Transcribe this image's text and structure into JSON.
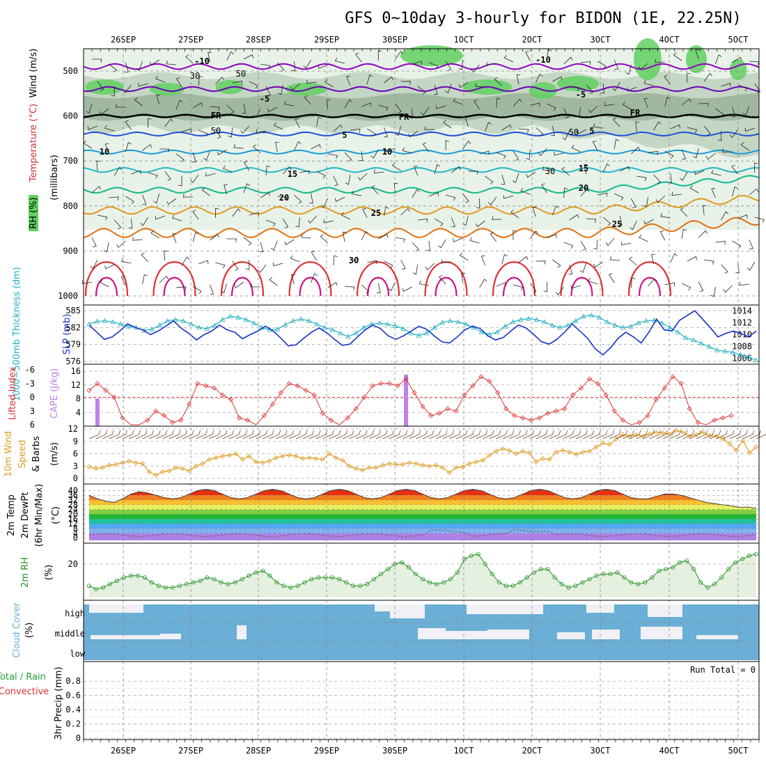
{
  "title": "GFS 0~10day 3-hourly for BIDON (1E, 22.25N)",
  "colors": {
    "temp10neg": "#9000c0",
    "temp5neg": "#7000b8",
    "fr": "#000000",
    "t5": "#1e4fd8",
    "t10": "#1a9ad8",
    "t15": "#20b8c8",
    "t20": "#10b890",
    "t25": "#e09a20",
    "t30": "#e07010",
    "t35": "#e03030",
    "t40": "#d0108a",
    "rh_light": "#e8f2e8",
    "rh_mid": "#c4d6c4",
    "rh_dark": "#a0b8a0",
    "rh_green": "#60d060",
    "thickness": "#20b0c0",
    "slp": "#1830c8",
    "lifted": "#e03030",
    "cape": "#c080e8",
    "wind": "#e09a20",
    "barb": "#604020",
    "rh2m": "#209020",
    "cloud": "#6baed6",
    "cloudfree": "#f0f0f6"
  },
  "date_labels": [
    "26SEP",
    "27SEP",
    "28SEP",
    "29SEP",
    "30SEP",
    "1OCT",
    "2OCT",
    "3OCT",
    "4OCT",
    "5OCT"
  ],
  "panels": {
    "upper": {
      "ylabel_wind": "Wind (m/s)",
      "ylabel_temp": "Temperature (°C)",
      "ylabel_rh": "RH (%)",
      "ylabel_mb": "(millibars)",
      "levels": [
        "500",
        "600",
        "700",
        "800",
        "900",
        "1000"
      ],
      "contour_labels": [
        "-10",
        "-5",
        "FR",
        "5",
        "10",
        "15",
        "20",
        "25",
        "30",
        "50",
        "30",
        "50"
      ]
    },
    "thickness": {
      "ylabel_left": "1000~500mb Thickness (dm)",
      "ylabel_right": "SLP (mb)",
      "left_ticks": [
        "585",
        "582",
        "579",
        "576"
      ],
      "right_ticks": [
        "1014",
        "1012",
        "1010",
        "1008",
        "1006"
      ]
    },
    "instability": {
      "ylabel_left": "Lifted Index",
      "ylabel_right": "CAPE (J/kg)",
      "left_ticks": [
        "-6",
        "-3",
        "0",
        "3",
        "6"
      ],
      "right_ticks": [
        "16",
        "12",
        "8",
        "4"
      ]
    },
    "wind10m": {
      "ylabel1": "10m Wind",
      "ylabel2": "Speed",
      "ylabel3": "& Barbs",
      "unit": "(m/s)",
      "ticks": [
        "12",
        "9",
        "6",
        "3",
        "0"
      ]
    },
    "temp2m": {
      "ylabel1": "2m Temp",
      "ylabel2": "2m DewPt",
      "ylabel3": "(6hr Min/Max)",
      "unit": "(°C)",
      "ticks": [
        "40",
        "32",
        "24",
        "16",
        "8",
        "0"
      ],
      "ticks_extra": [
        "36",
        "28",
        "20",
        "12",
        "4"
      ]
    },
    "rh2m": {
      "ylabel": "2m RH",
      "unit": "(%)",
      "ticks": [
        "20"
      ]
    },
    "cloud": {
      "ylabel": "Cloud Cover",
      "unit": "(%)",
      "rows": [
        "high",
        "middle",
        "low"
      ]
    },
    "precip": {
      "ylabel1": "Total / Rain",
      "ylabel2": "Convective",
      "ylabel3": "3hr Precip (mm)",
      "ticks": [
        "0.8",
        "0.6",
        "0.4",
        "0.2",
        "0"
      ],
      "run_total": "Run Total = 0"
    }
  },
  "chart_data": {
    "type": "line",
    "x_unit": "3-hour steps (81 steps)",
    "series": [
      {
        "name": "SLP (mb)",
        "values": [
          1011.6,
          1010.4,
          1009.2,
          1009.6,
          1010.6,
          1011.8,
          1011.2,
          1010.8,
          1010,
          1010.6,
          1011.4,
          1012.3,
          1011.1,
          1010.2,
          1009.1,
          1010,
          1010.6,
          1011.6,
          1010.8,
          1010.4,
          1009.3,
          1010,
          1010.6,
          1011.4,
          1010.6,
          1009.4,
          1008.1,
          1008.3,
          1009.4,
          1010.4,
          1011.1,
          1010.3,
          1009.2,
          1008.2,
          1008.4,
          1009.6,
          1010.8,
          1011.6,
          1011,
          1009.8,
          1009.2,
          1009.8,
          1010.6,
          1011.4,
          1010.9,
          1009.8,
          1008.8,
          1008.6,
          1009.6,
          1010.8,
          1011.4,
          1011,
          1009.8,
          1009.1,
          1009.5,
          1010.6,
          1011.6,
          1011.1,
          1010,
          1008.8,
          1008.4,
          1009.2,
          1010.4,
          1011.8,
          1010.6,
          1009.4,
          1007.6,
          1006.6,
          1007.8,
          1009.4,
          1010.4,
          1009.6,
          1008.6,
          1010.4,
          1012.6,
          1010.8,
          1010.6,
          1012.4,
          1013.2,
          1014,
          1012.6,
          1011.2,
          1009.6,
          1010.2,
          1010.6,
          1010.2,
          1009.6,
          1010.6
        ]
      },
      {
        "name": "1000-500mb Thickness (dm)",
        "values": [
          582.6,
          583.1,
          583.2,
          583.0,
          582.6,
          582.2,
          582.0,
          581.5,
          581.7,
          582.4,
          583.2,
          583.4,
          583.2,
          582.6,
          582.0,
          581.8,
          582.4,
          583.4,
          584.0,
          583.8,
          583.4,
          582.8,
          582.0,
          581.6,
          581.7,
          582.5,
          583.2,
          583.5,
          583.2,
          582.6,
          582.0,
          581.6,
          581.0,
          580.4,
          581.0,
          582.0,
          582.6,
          582.8,
          582.6,
          582.3,
          581.8,
          581.0,
          580.6,
          581.0,
          582.0,
          582.9,
          583.2,
          583.0,
          582.6,
          582.0,
          581.2,
          580.8,
          581.2,
          582.2,
          583.0,
          583.4,
          583.6,
          583.4,
          583.0,
          582.4,
          582.0,
          582.4,
          583.2,
          584.0,
          584.2,
          583.8,
          583.0,
          582.4,
          582.0,
          582.2,
          582.8,
          583.2,
          583.3,
          582.8,
          582.0,
          581.2,
          580.2,
          579.8,
          579.2,
          578.6,
          578.0,
          577.8,
          577.6,
          577.2,
          576.8,
          576.2
        ]
      },
      {
        "name": "Lifted Index",
        "values": [
          -1.5,
          -3.0,
          -1.5,
          0.0,
          4.5,
          6.0,
          6.0,
          5.0,
          3.0,
          4.0,
          5.5,
          5.0,
          1.5,
          -3.0,
          -2.5,
          -2.0,
          -0.5,
          0.5,
          4.5,
          5.0,
          6.0,
          4.0,
          1.5,
          -1.0,
          -3.0,
          -2.5,
          -1.5,
          -0.5,
          3.5,
          5.0,
          6.0,
          4.5,
          2.5,
          0.0,
          -2.5,
          -3.0,
          -3.0,
          -2.5,
          -4.0,
          -1.0,
          2.0,
          4.0,
          3.5,
          2.5,
          3.0,
          -0.5,
          -2.5,
          -4.5,
          -3.5,
          -1.0,
          2.5,
          4.0,
          4.5,
          5.0,
          4.5,
          3.5,
          3.0,
          2.5,
          -0.5,
          -2.0,
          -4.0,
          -3.0,
          -0.5,
          3.0,
          5.0,
          6.5,
          5.5,
          4.0,
          0.5,
          -2.0,
          -4.5,
          -3.0,
          2.5,
          5.5,
          6.5,
          5.0,
          4.5,
          4.0
        ]
      },
      {
        "name": "10m Wind Speed (m/s)",
        "values": [
          2.8,
          2.4,
          2.6,
          3.2,
          3.4,
          3.8,
          4.2,
          3.8,
          3.6,
          1.6,
          0.8,
          1.6,
          1.8,
          2.6,
          2.4,
          1.8,
          3.0,
          3.6,
          4.6,
          5.0,
          5.4,
          5.6,
          6.0,
          4.6,
          5.4,
          4.0,
          3.8,
          4.2,
          5.0,
          5.4,
          5.6,
          5.4,
          4.8,
          5.0,
          4.8,
          4.6,
          6.0,
          5.0,
          4.4,
          3.0,
          2.4,
          2.0,
          2.6,
          2.6,
          3.2,
          3.6,
          3.4,
          3.4,
          3.8,
          3.6,
          3.2,
          3.0,
          3.2,
          2.6,
          1.4,
          2.6,
          2.8,
          3.6,
          4.0,
          4.4,
          5.6,
          6.6,
          7.2,
          6.8,
          6.0,
          6.6,
          6.2,
          4.0,
          4.8,
          4.6,
          6.4,
          6.8,
          6.4,
          5.8,
          6.4,
          6.6,
          7.6,
          8.6,
          8.2,
          9.6,
          10.6,
          10.2,
          10.6,
          10.2,
          10.8,
          11.2,
          11.0,
          10.8,
          11.6,
          11.2,
          10.2,
          10.6,
          11.2,
          10.4,
          10.2,
          9.6,
          8.4,
          6.8,
          9.2,
          6.2,
          7.6
        ]
      },
      {
        "name": "2m Temp (°C)",
        "values": [
          36,
          33,
          31,
          30,
          33,
          37,
          39,
          38,
          36,
          34,
          33,
          34,
          37,
          40,
          41,
          40,
          37,
          34,
          33,
          34,
          37,
          40,
          41,
          40,
          37,
          34,
          33,
          34,
          37,
          40,
          41,
          40,
          37,
          34,
          33,
          34,
          37,
          40,
          41,
          40,
          37,
          34,
          33,
          34,
          37,
          40,
          41,
          40,
          37,
          34,
          33,
          34,
          37,
          40,
          41,
          40,
          37,
          34,
          33,
          34,
          37,
          40,
          41,
          40,
          37,
          34,
          33,
          33,
          35,
          37,
          37,
          36,
          34,
          32,
          30,
          29,
          28,
          27,
          26,
          26,
          25
        ]
      },
      {
        "name": "2m RH (%)",
        "values": [
          7,
          5,
          6,
          8,
          10,
          12,
          13,
          13,
          12,
          9,
          7,
          6,
          6,
          7,
          8,
          9,
          10,
          12,
          11,
          9,
          8,
          9,
          11,
          13,
          15,
          16,
          13,
          9,
          7,
          6,
          7,
          9,
          11,
          12,
          12,
          12,
          11,
          9,
          7,
          7,
          8,
          11,
          14,
          17,
          20,
          21,
          18,
          14,
          11,
          9,
          8,
          9,
          11,
          15,
          23,
          25,
          26,
          20,
          14,
          9,
          7,
          7,
          9,
          12,
          15,
          17,
          17,
          12,
          8,
          6,
          7,
          9,
          11,
          13,
          14,
          14,
          15,
          12,
          9,
          8,
          9,
          12,
          16,
          17,
          18,
          21,
          22,
          17,
          9,
          6,
          8,
          12,
          17,
          21,
          23,
          25,
          26
        ]
      },
      {
        "name": "CAPE (J/kg)",
        "values": [
          {
            "x": 1,
            "v": 8
          },
          {
            "x": 38,
            "v": 15
          }
        ]
      }
    ]
  }
}
